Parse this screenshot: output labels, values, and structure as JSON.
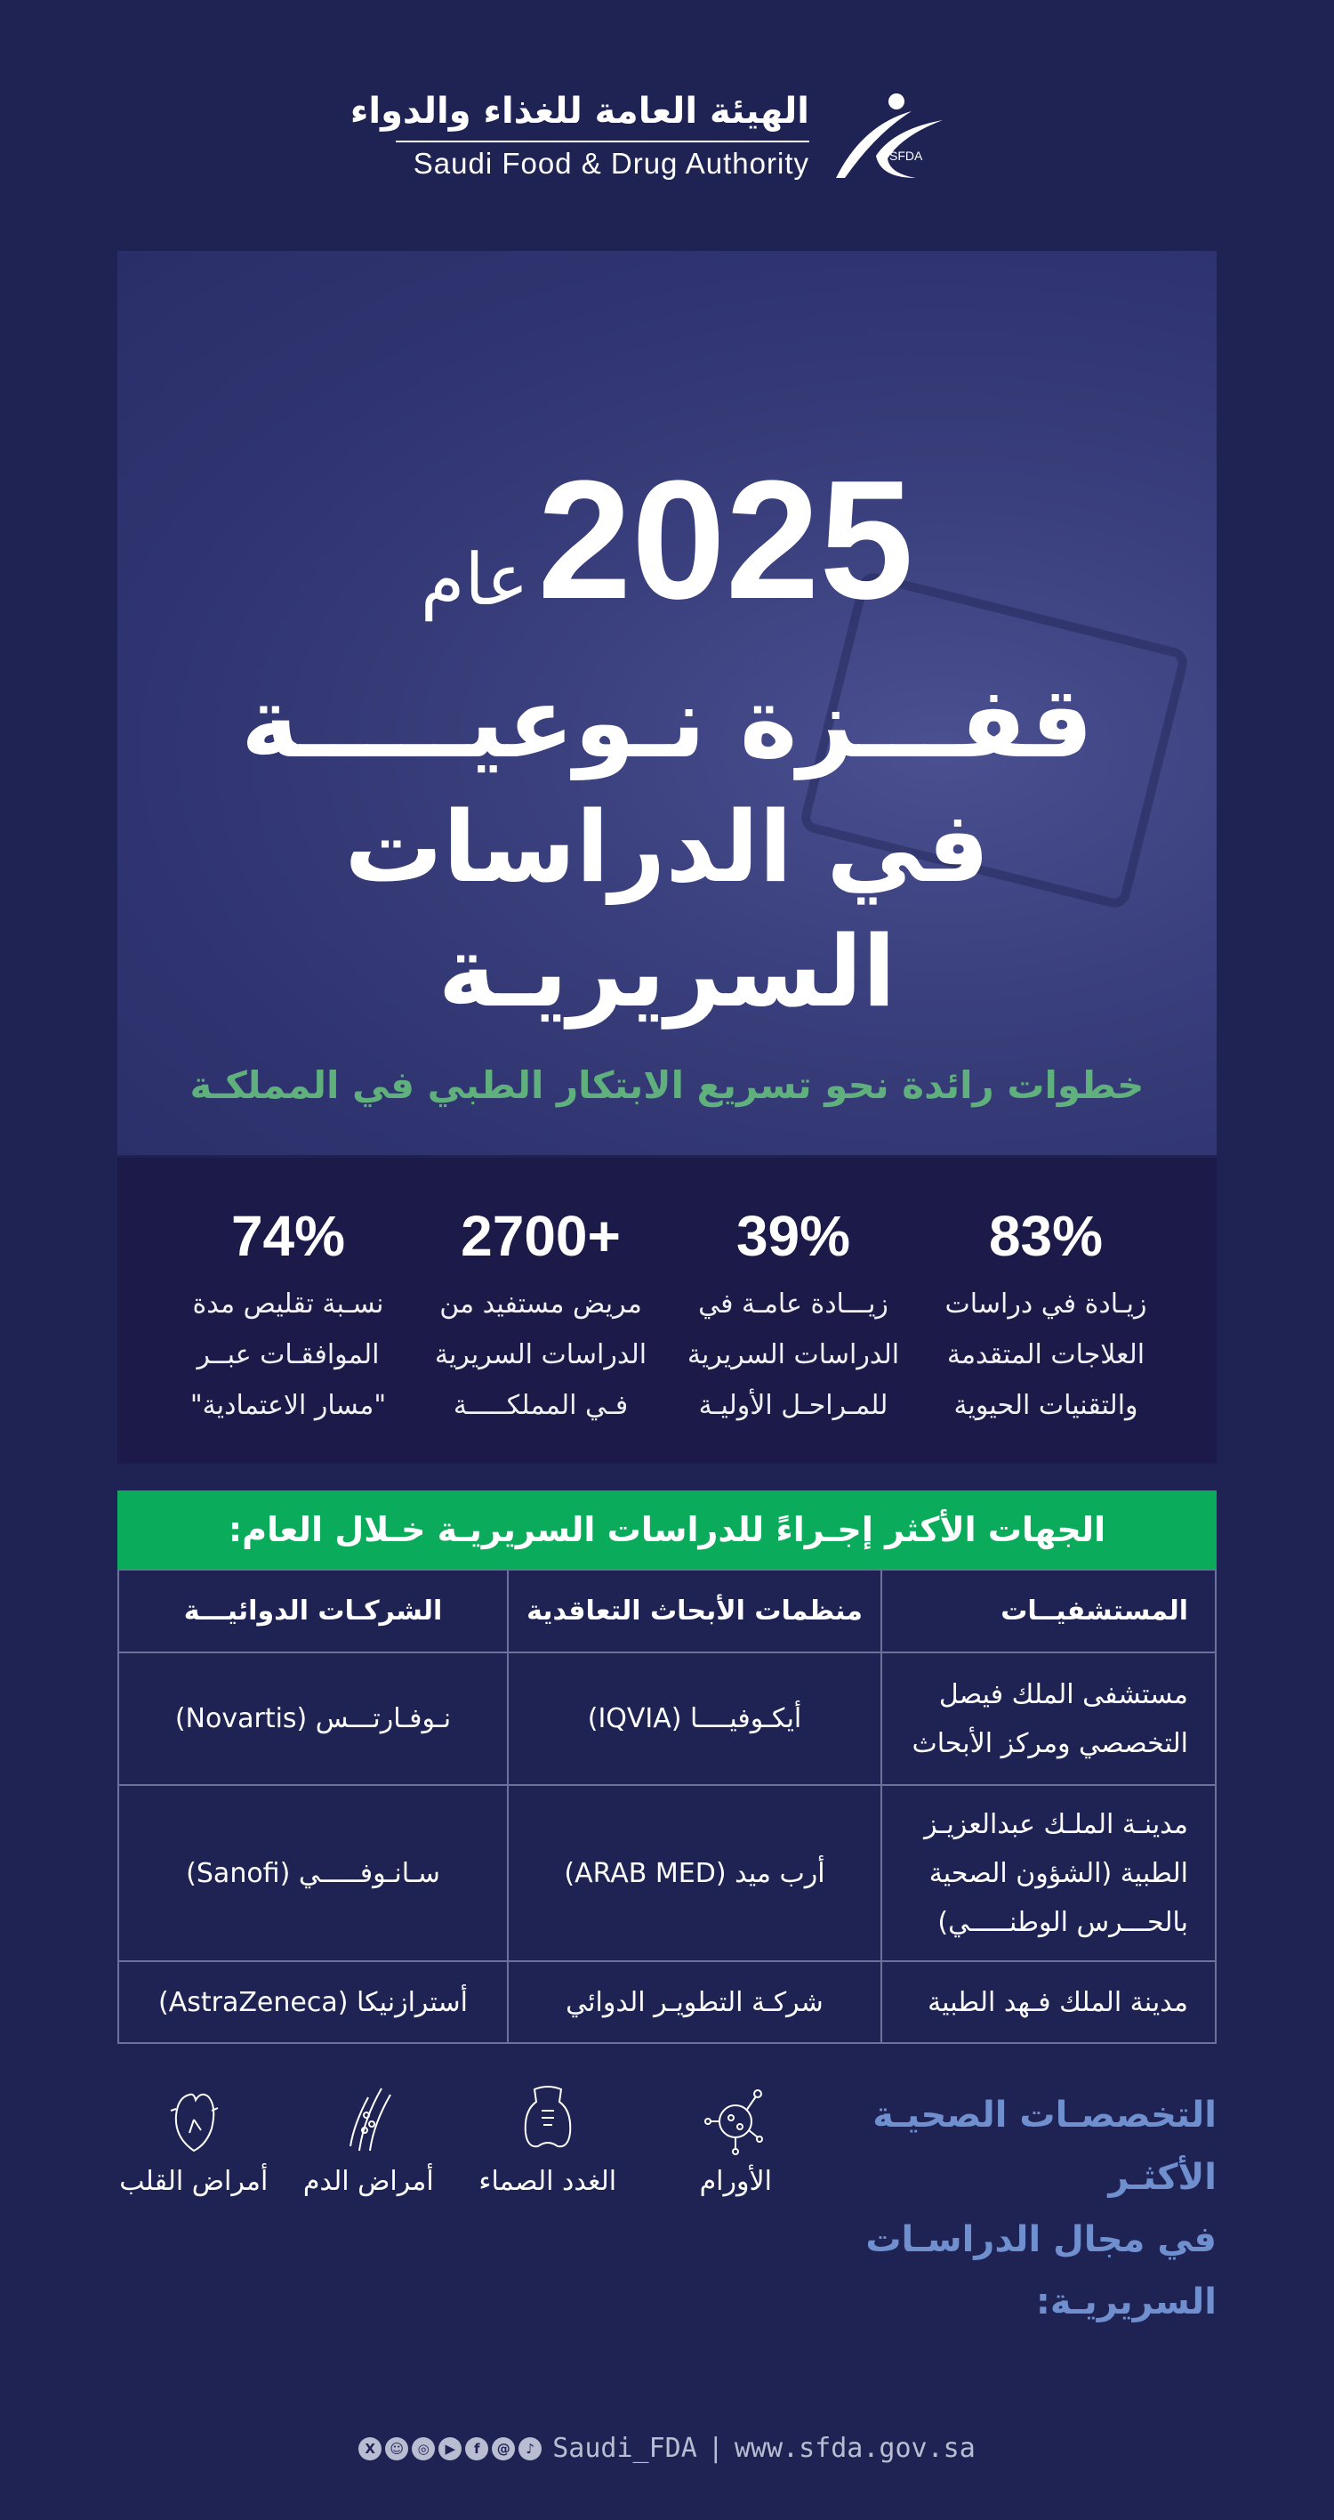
{
  "logo": {
    "arabic": "الهيئة العامة للغذاء والدواء",
    "english": "Saudi Food & Drug Authority",
    "emblem_text": "SFDA"
  },
  "hero": {
    "year_word": "عام",
    "year": "2025",
    "headline_line1": "قفـــزة نـوعيـــــة",
    "headline_line2": "في الدراسات السريريـة",
    "subtitle": "خطوات رائدة نحو تسريع الابتكار الطبي في المملكـة"
  },
  "stats": [
    {
      "value": "83%",
      "lines": [
        "زيـادة في دراسات",
        "العلاجات المتقدمة",
        "والتقنيات الحيوية"
      ]
    },
    {
      "value": "39%",
      "lines": [
        "زيـــادة عامـة في",
        "الدراسات السريرية",
        "للمـراحـل الأوليـة"
      ]
    },
    {
      "value": "2700+",
      "lines": [
        "مريض مستفيد من",
        "الدراسات السريرية",
        "فـي المملكـــــة"
      ]
    },
    {
      "value": "74%",
      "lines": [
        "نسـبة تقليص مدة",
        "الموافقـات عبــر",
        "\"مسار الاعتمادية\""
      ]
    }
  ],
  "table": {
    "title": "الجهات الأكثر إجـراءً للدراسات السريريـة خـلال العام:",
    "headers": [
      "المستشفيــات",
      "منظمات الأبحاث التعاقدية",
      "الشركـات الدوائيـــة"
    ],
    "rows": [
      [
        "مستشفى الملك فيصل التخصصي ومركز الأبحاث",
        "أيكـوفيــــا (IQVIA)",
        "نـوفـارتـــس (Novartis)"
      ],
      [
        "مدينـة الملـك عبدالعزيـز الطبية (الشؤون الصحية بالحـــرس الوطنـــــي)",
        "أرب ميد (ARAB MED)",
        "سـانـوفـــــي (Sanofi)"
      ],
      [
        "مدينة الملك فـهد الطبية",
        "شركـة التطويـر الدوائي",
        "أسترازنيكا (AstraZeneca)"
      ]
    ]
  },
  "specialties": {
    "title_line1": "التخصصـات الصحيـة الأكثـر",
    "title_line2": "في مجال الدراسـات السريريـة:",
    "items": [
      {
        "label": "الأورام",
        "icon": "tumor-cell-icon"
      },
      {
        "label": "الغدد الصماء",
        "icon": "thyroid-gland-icon"
      },
      {
        "label": "أمراض الدم",
        "icon": "blood-vessel-icon"
      },
      {
        "label": "أمراض القلب",
        "icon": "heart-icon"
      }
    ]
  },
  "footer": {
    "social_icons": [
      "x-icon",
      "snapchat-icon",
      "instagram-icon",
      "youtube-icon",
      "facebook-icon",
      "threads-icon",
      "tiktok-icon"
    ],
    "handle": "Saudi_FDA",
    "separator": "|",
    "website": "www.sfda.gov.sa"
  },
  "colors": {
    "background": "#1f2354",
    "stats_bg": "#1b1a48",
    "table_header": "#0bab5c",
    "subtitle": "#5fb07d",
    "specialties_title": "#6f8fcf"
  }
}
